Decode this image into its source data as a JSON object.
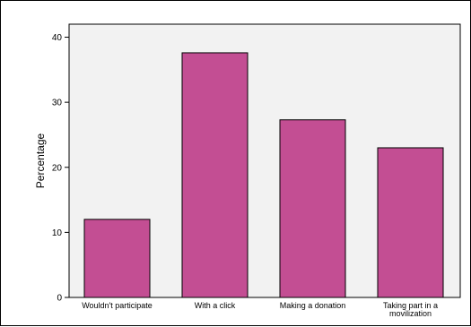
{
  "chart_data": {
    "type": "bar",
    "categories": [
      [
        "Wouldn't participate"
      ],
      [
        "With a click"
      ],
      [
        "Making a donation"
      ],
      [
        "Taking part in a",
        "movilization"
      ]
    ],
    "values": [
      12,
      37.6,
      27.3,
      23
    ],
    "xlabel": "",
    "ylabel": "Percentage",
    "ylim": [
      0,
      42
    ],
    "yticks": [
      0,
      10,
      20,
      30,
      40
    ],
    "grid": false,
    "colors": {
      "bar": "#c34e93",
      "plot_bg": "#f2f2f2",
      "border": "#000000"
    }
  }
}
